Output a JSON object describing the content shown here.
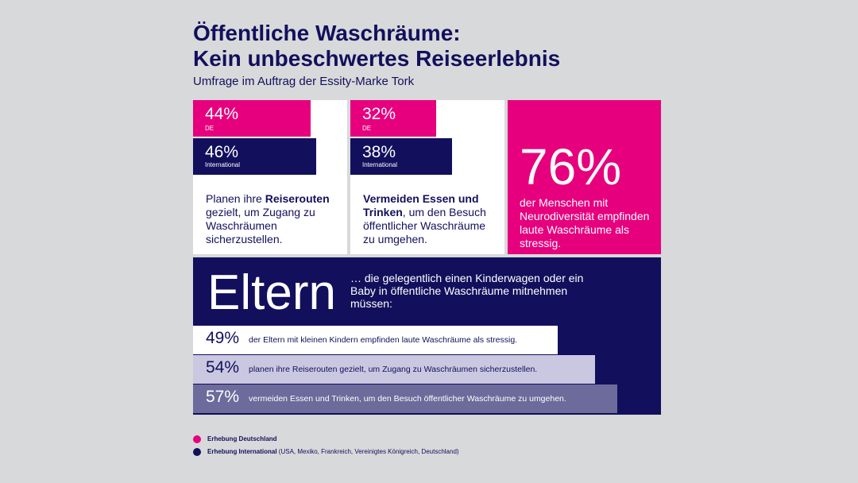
{
  "title_line1": "Öffentliche Waschräume:",
  "title_line2": "Kein unbeschwertes Reiseerlebnis",
  "subtitle": "Umfrage im Auftrag der Essity-Marke Tork",
  "colors": {
    "pink": "#e6007e",
    "navy": "#12105c",
    "lavender": "#c9c8e0",
    "slate": "#6c6b9c",
    "white": "#ffffff"
  },
  "card1": {
    "de_value": "44%",
    "de_label": "DE",
    "int_value": "46%",
    "int_label": "International",
    "text_bold": "Reiserouten",
    "text_pre": "Planen ihre ",
    "text_post": " gezielt, um Zugang zu Waschräumen sicherzustellen."
  },
  "card2": {
    "de_value": "32%",
    "de_label": "DE",
    "int_value": "38%",
    "int_label": "International",
    "text_bold": "Vermeiden Essen und Trinken",
    "text_post": ", um den Besuch öffentlicher Waschräume zu umgehen."
  },
  "card3": {
    "value": "76%",
    "text": "der Menschen mit Neurodiversität empfinden laute Waschräume als stressig."
  },
  "eltern": {
    "heading": "Eltern",
    "description": "… die gelegentlich einen Kinderwagen oder ein Baby in öffentliche Waschräume mitnehmen müssen:",
    "rows": [
      {
        "value": "49%",
        "text": "der Eltern mit kleinen Kindern empfinden laute Waschräume als stressig."
      },
      {
        "value": "54%",
        "text": "planen ihre Reiserouten gezielt, um Zugang zu Waschräumen sicherzustellen."
      },
      {
        "value": "57%",
        "text": "vermeiden Essen und Trinken, um den Besuch öffentlicher Waschräume zu umgehen."
      }
    ]
  },
  "legend": {
    "de": "Erhebung Deutschland",
    "int_bold": "Erhebung International",
    "int_detail": " (USA, Mexiko, Frankreich, Vereinigtes Königreich, Deutschland)"
  },
  "chart_data": {
    "type": "bar",
    "categories": [
      "Planen ihre Reiserouten gezielt",
      "Vermeiden Essen und Trinken"
    ],
    "series": [
      {
        "name": "DE",
        "values": [
          44,
          32
        ]
      },
      {
        "name": "International",
        "values": [
          46,
          38
        ]
      }
    ],
    "extra_stats": {
      "neurodiversity_stressed": 76,
      "parents": [
        49,
        54,
        57
      ]
    }
  }
}
